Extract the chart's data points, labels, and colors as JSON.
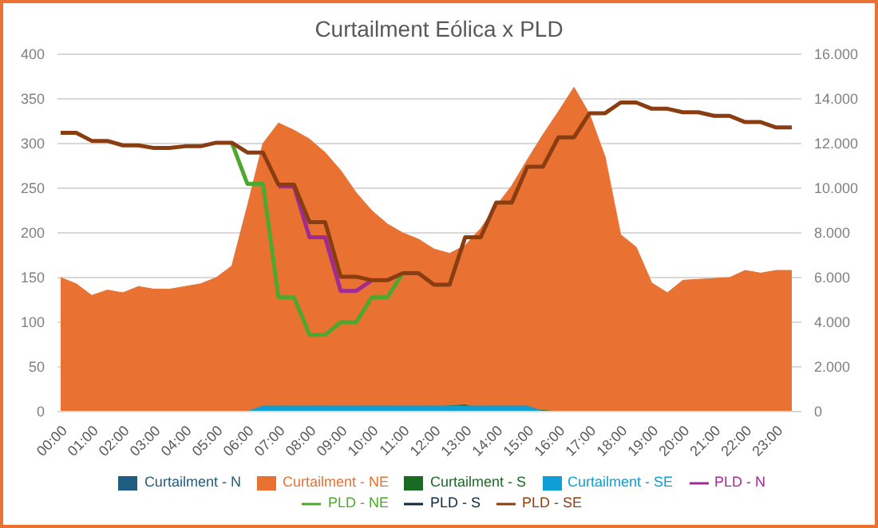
{
  "chart_data": {
    "type": "line",
    "title": "Curtailment Eólica x PLD",
    "categories": [
      "00:00",
      null,
      "01:00",
      null,
      "02:00",
      null,
      "03:00",
      null,
      "04:00",
      null,
      "05:00",
      null,
      "06:00",
      null,
      "07:00",
      null,
      "08:00",
      null,
      "09:00",
      null,
      "10:00",
      null,
      "11:00",
      null,
      "12:00",
      null,
      "13:00",
      null,
      "14:00",
      null,
      "15:00",
      null,
      "16:00",
      null,
      "17:00",
      null,
      "18:00",
      null,
      "19:00",
      null,
      "20:00",
      null,
      "21:00",
      null,
      "22:00",
      null,
      "23:00",
      null
    ],
    "series": [
      {
        "name": "Curtailment - N",
        "type": "area",
        "axis": "y2",
        "color": "#1f5c82",
        "values": [
          0,
          0,
          0,
          0,
          0,
          0,
          0,
          0,
          0,
          0,
          0,
          0,
          0,
          80,
          80,
          80,
          80,
          80,
          80,
          80,
          80,
          80,
          80,
          80,
          80,
          80,
          80,
          80,
          80,
          80,
          80,
          0,
          0,
          0,
          0,
          0,
          0,
          0,
          0,
          0,
          0,
          0,
          0,
          0,
          0,
          0,
          0,
          0
        ]
      },
      {
        "name": "Curtailment - NE",
        "type": "area",
        "axis": "y2",
        "color": "#e97132",
        "values": [
          6000,
          5720,
          5200,
          5440,
          5320,
          5600,
          5480,
          5480,
          5600,
          5720,
          6000,
          6520,
          9200,
          12000,
          12920,
          12600,
          12200,
          11600,
          10800,
          9800,
          9000,
          8400,
          8000,
          7720,
          7280,
          7080,
          7440,
          8200,
          9200,
          10120,
          11280,
          12400,
          13440,
          14520,
          13320,
          11400,
          7920,
          7360,
          5760,
          5320,
          5880,
          5920,
          5960,
          6000,
          6320,
          6200,
          6320,
          6320
        ]
      },
      {
        "name": "Curtailment - S",
        "type": "area",
        "axis": "y2",
        "color": "#196b24",
        "values": [
          0,
          0,
          0,
          0,
          0,
          0,
          0,
          0,
          0,
          0,
          0,
          0,
          0,
          100,
          100,
          100,
          100,
          100,
          100,
          100,
          100,
          150,
          150,
          150,
          200,
          250,
          300,
          100,
          100,
          150,
          100,
          50,
          0,
          0,
          0,
          0,
          0,
          0,
          0,
          0,
          0,
          0,
          0,
          0,
          0,
          0,
          0,
          0
        ]
      },
      {
        "name": "Curtailment - SE",
        "type": "area",
        "axis": "y2",
        "color": "#0f9ed5",
        "values": [
          null,
          null,
          null,
          null,
          null,
          null,
          null,
          null,
          null,
          null,
          null,
          null,
          0,
          250,
          250,
          250,
          250,
          250,
          250,
          250,
          250,
          250,
          250,
          250,
          250,
          250,
          250,
          250,
          250,
          250,
          250,
          0,
          null,
          null,
          null,
          null,
          null,
          null,
          null,
          null,
          null,
          null,
          null,
          null,
          null,
          null,
          null,
          null
        ]
      },
      {
        "name": "PLD - N",
        "color": "#a02b93",
        "values": [
          null,
          null,
          null,
          null,
          null,
          null,
          null,
          null,
          null,
          null,
          null,
          null,
          null,
          null,
          252,
          252,
          195,
          195,
          135,
          135,
          147,
          null,
          null,
          null,
          null,
          null,
          null,
          null,
          null,
          null,
          null,
          null,
          null,
          null,
          null,
          null,
          null,
          null,
          null,
          null,
          null,
          null,
          null,
          null,
          null,
          null,
          null,
          null
        ]
      },
      {
        "name": "PLD - NE",
        "color": "#4ea72e",
        "values": [
          null,
          null,
          null,
          null,
          null,
          null,
          null,
          null,
          null,
          null,
          null,
          301,
          255,
          255,
          128,
          128,
          86,
          86,
          100,
          100,
          128,
          128,
          155,
          null,
          null,
          null,
          null,
          null,
          null,
          null,
          null,
          null,
          null,
          null,
          null,
          null,
          null,
          null,
          null,
          null,
          null,
          null,
          null,
          null,
          null,
          null,
          null,
          null
        ]
      },
      {
        "name": "PLD - S",
        "color": "#0e2841",
        "values": [
          null,
          null,
          null,
          null,
          null,
          null,
          null,
          null,
          null,
          null,
          null,
          null,
          null,
          null,
          null,
          null,
          null,
          null,
          null,
          null,
          null,
          null,
          null,
          null,
          null,
          null,
          null,
          null,
          null,
          null,
          null,
          null,
          null,
          null,
          null,
          null,
          null,
          null,
          null,
          null,
          null,
          null,
          null,
          null,
          null,
          null,
          null,
          null
        ]
      },
      {
        "name": "PLD - SE",
        "color": "#8b3d12",
        "values": [
          312,
          312,
          303,
          303,
          298,
          298,
          295,
          295,
          297,
          297,
          301,
          301,
          290,
          290,
          254,
          254,
          212,
          212,
          151,
          151,
          147,
          147,
          155,
          155,
          142,
          142,
          195,
          195,
          234,
          234,
          274,
          274,
          307,
          307,
          334,
          334,
          346,
          346,
          339,
          339,
          335,
          335,
          331,
          331,
          324,
          324,
          318,
          318
        ]
      }
    ],
    "ylim": [
      0,
      400
    ],
    "yticks": [
      0,
      50,
      100,
      150,
      200,
      250,
      300,
      350,
      400
    ],
    "y2lim": [
      0,
      16000
    ],
    "y2ticks": [
      {
        "value": 0,
        "label": "0"
      },
      {
        "value": 2000,
        "label": "2.000"
      },
      {
        "value": 4000,
        "label": "4.000"
      },
      {
        "value": 6000,
        "label": "6.000"
      },
      {
        "value": 8000,
        "label": "8.000"
      },
      {
        "value": 10000,
        "label": "10.000"
      },
      {
        "value": 12000,
        "label": "12.000"
      },
      {
        "value": 14000,
        "label": "14.000"
      },
      {
        "value": 16000,
        "label": "16.000"
      }
    ],
    "grid": "y",
    "legend": "bottom",
    "marker": "none",
    "line_style": "solid"
  }
}
